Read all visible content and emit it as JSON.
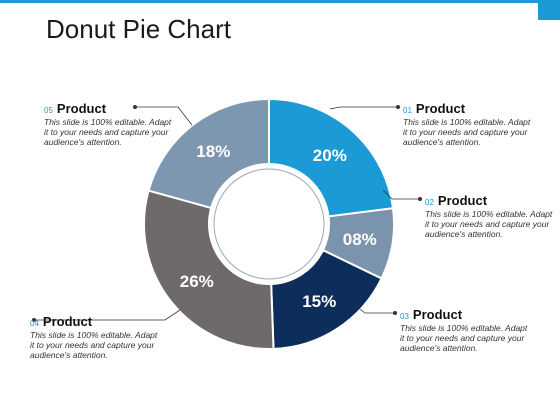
{
  "title": "Donut Pie Chart",
  "colors": {
    "accent": "#1b9ad6"
  },
  "chart_data": {
    "type": "pie",
    "variant": "donut",
    "categories": [
      "01",
      "02",
      "03",
      "04",
      "05"
    ],
    "values": [
      20,
      8,
      15,
      26,
      18
    ],
    "value_labels": [
      "20%",
      "08%",
      "15%",
      "26%",
      "18%"
    ],
    "colors": [
      "#1b9ad6",
      "#7a94ad",
      "#0d2d5a",
      "#6f6a6a",
      "#7e97b0"
    ]
  },
  "callouts": [
    {
      "num": "01",
      "name": "Product",
      "text": "This slide is 100% editable. Adapt it to your needs and capture your audience's attention."
    },
    {
      "num": "02",
      "name": "Product",
      "text": "This slide is 100% editable. Adapt it to your needs and capture your audience's attention."
    },
    {
      "num": "03",
      "name": "Product",
      "text": "This slide is 100% editable. Adapt it to your needs and capture your audience's attention."
    },
    {
      "num": "04",
      "name": "Product",
      "text": "This slide is 100% editable. Adapt it to your needs and capture your audience's attention."
    },
    {
      "num": "05",
      "name": "Product",
      "text": "This slide is 100% editable. Adapt it to your needs and capture your audience's attention."
    }
  ]
}
